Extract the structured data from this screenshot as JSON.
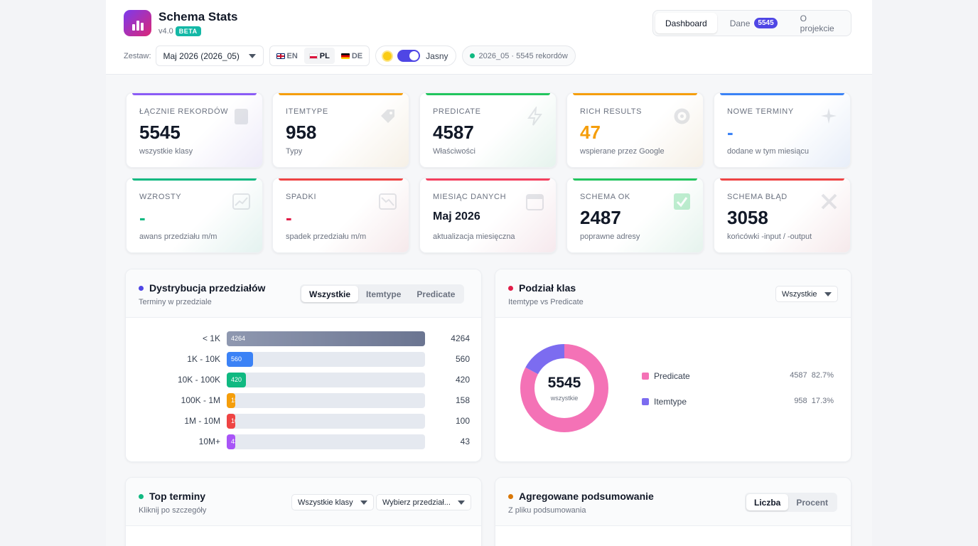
{
  "app": {
    "title": "Schema Stats",
    "version": "v4.0",
    "badge": "BETA"
  },
  "nav": {
    "tabs": [
      {
        "label": "Dashboard",
        "active": true
      },
      {
        "label": "Dane",
        "count": "5545"
      },
      {
        "label": "O projekcie"
      }
    ]
  },
  "toolbar": {
    "set_label": "Zestaw:",
    "set_value": "Maj 2026 (2026_05)",
    "languages": [
      "EN",
      "PL",
      "DE"
    ],
    "active_language": "PL",
    "theme_label": "Jasny",
    "status_text": "2026_05 · 5545 rekordów",
    "status_color": "#10b981"
  },
  "cards": [
    {
      "label": "Łącznie rekordów",
      "value": "5545",
      "sub": "wszystkie klasy",
      "accent": "#8b5cf6",
      "value_color": "#111827",
      "icon": "document-icon"
    },
    {
      "label": "Itemtype",
      "value": "958",
      "sub": "Typy",
      "accent": "#f59e0b",
      "value_color": "#111827",
      "icon": "tag-icon"
    },
    {
      "label": "Predicate",
      "value": "4587",
      "sub": "Właściwości",
      "accent": "#22c55e",
      "value_color": "#111827",
      "icon": "lightning-icon"
    },
    {
      "label": "Rich results",
      "value": "47",
      "sub": "wspierane przez Google",
      "accent": "#f59e0b",
      "value_color": "#f59e0b",
      "icon": "target-icon"
    },
    {
      "label": "Nowe terminy",
      "value": "-",
      "sub": "dodane w tym miesiącu",
      "accent": "#3b82f6",
      "value_color": "#3b82f6",
      "icon": "sparkle-icon"
    },
    {
      "label": "Wzrosty",
      "value": "-",
      "sub": "awans przedziału m/m",
      "accent": "#10b981",
      "value_color": "#10b981",
      "icon": "trend-up-icon"
    },
    {
      "label": "Spadki",
      "value": "-",
      "sub": "spadek przedziału m/m",
      "accent": "#ef4444",
      "value_color": "#e11d48",
      "icon": "trend-down-icon"
    },
    {
      "label": "Miesiąc danych",
      "value": "Maj 2026",
      "sub": "aktualizacja miesięczna",
      "accent": "#f43f5e",
      "value_color": "#111827",
      "icon": "calendar-icon"
    },
    {
      "label": "Schema OK",
      "value": "2487",
      "sub": "poprawne adresy",
      "accent": "#22c55e",
      "value_color": "#111827",
      "icon": "check-icon"
    },
    {
      "label": "Schema błąd",
      "value": "3058",
      "sub": "końcówki -input / -output",
      "accent": "#ef4444",
      "value_color": "#111827",
      "icon": "cross-icon"
    }
  ],
  "distribution": {
    "title": "Dystrybucja przedziałów",
    "subtitle": "Terminy w przedziale",
    "dot_color": "#4f46e5",
    "tabs": [
      "Wszystkie",
      "Itemtype",
      "Predicate"
    ],
    "active_tab": "Wszystkie"
  },
  "chart_data": [
    {
      "type": "bar",
      "orientation": "horizontal",
      "categories": [
        "< 1K",
        "1K - 10K",
        "10K - 100K",
        "100K - 1M",
        "1M - 10M",
        "10M+"
      ],
      "values": [
        4264,
        560,
        420,
        158,
        100,
        43
      ],
      "colors": [
        "#6b7591",
        "#3b82f6",
        "#10b981",
        "#f59e0b",
        "#ef4444",
        "#a855f7"
      ],
      "xlim": [
        0,
        4264
      ]
    },
    {
      "type": "pie",
      "title": "Podział klas",
      "center_value": "5545",
      "center_label": "wszystkie",
      "slices": [
        {
          "name": "Predicate",
          "value": 4587,
          "percent": "82.7%",
          "color": "#f472b6"
        },
        {
          "name": "Itemtype",
          "value": 958,
          "percent": "17.3%",
          "color": "#7c6cf0"
        }
      ]
    }
  ],
  "classes": {
    "title": "Podział klas",
    "subtitle": "Itemtype vs Predicate",
    "dot_color": "#e11d48",
    "filter": "Wszystkie"
  },
  "top_terms": {
    "title": "Top terminy",
    "subtitle": "Kliknij po szczegóły",
    "dot_color": "#10b981",
    "class_filter": "Wszystkie klasy",
    "range_filter": "Wybierz przedział..."
  },
  "summary": {
    "title": "Agregowane podsumowanie",
    "subtitle": "Z pliku podsumowania",
    "dot_color": "#d97706",
    "tabs": [
      "Liczba",
      "Procent"
    ],
    "active_tab": "Liczba"
  }
}
